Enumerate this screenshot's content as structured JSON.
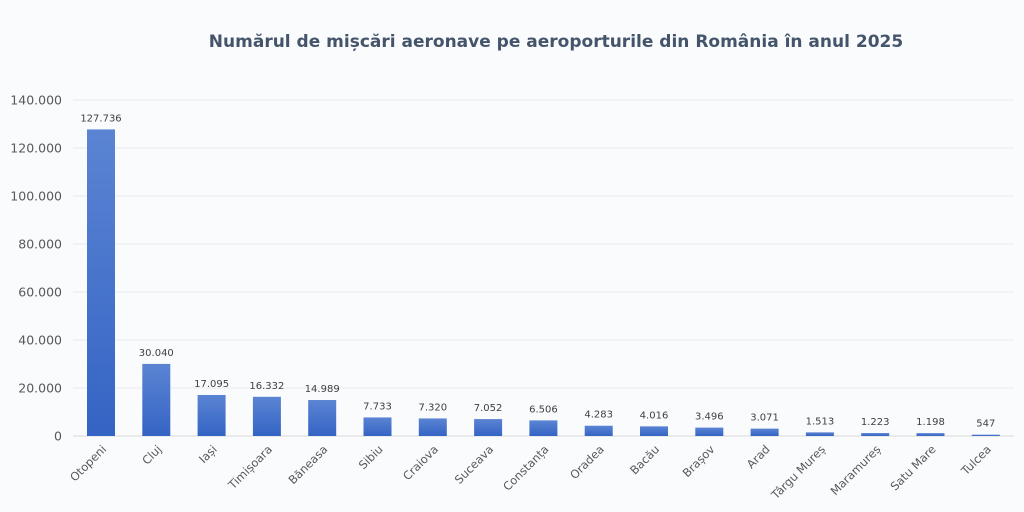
{
  "chart_data": {
    "type": "bar",
    "title": "Numărul de mișcări aeronave pe aeroporturile din România în anul 2025",
    "xlabel": "",
    "ylabel": "",
    "categories": [
      "Otopeni",
      "Cluj",
      "Iași",
      "Timișoara",
      "Băneasa",
      "Sibiu",
      "Craiova",
      "Suceava",
      "Constanța",
      "Oradea",
      "Bacău",
      "Brașov",
      "Arad",
      "Târgu Mureș",
      "Maramureș",
      "Satu Mare",
      "Tulcea"
    ],
    "values": [
      127736,
      30040,
      17095,
      16332,
      14989,
      7733,
      7320,
      7052,
      6506,
      4283,
      4016,
      3496,
      3071,
      1513,
      1223,
      1198,
      547
    ],
    "data_labels": [
      "127.736",
      "30.040",
      "17.095",
      "16.332",
      "14.989",
      "7.733",
      "7.320",
      "7.052",
      "6.506",
      "4.283",
      "4.016",
      "3.496",
      "3.071",
      "1.513",
      "1.223",
      "1.198",
      "547"
    ],
    "ylim": [
      0,
      140000
    ],
    "yticks": [
      0,
      20000,
      40000,
      60000,
      80000,
      100000,
      120000,
      140000
    ],
    "ytick_labels": [
      "0",
      "20.000",
      "40.000",
      "60.000",
      "80.000",
      "100.000",
      "120.000",
      "140.000"
    ],
    "grid": true,
    "legend": "none",
    "bar_color": "#3464c4",
    "bar_color_light": "#5b84d3"
  }
}
